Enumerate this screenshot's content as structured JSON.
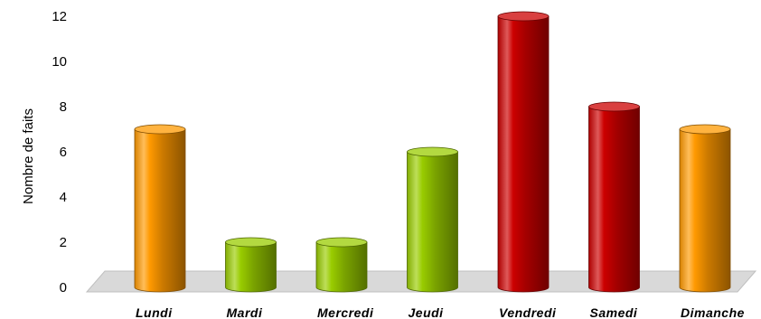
{
  "chart_data": {
    "type": "bar",
    "style": "3d-cylinder",
    "title": "",
    "xlabel": "",
    "ylabel": "Nombre de faits",
    "ylim": [
      0,
      12
    ],
    "yticks": [
      "0",
      "2",
      "4",
      "6",
      "8",
      "10",
      "12"
    ],
    "categories": [
      "Lundi",
      "Mardi",
      "Mercredi",
      "Jeudi",
      "Vendredi",
      "Samedi",
      "Dimanche"
    ],
    "values": [
      7,
      2,
      2,
      6,
      12,
      8,
      7
    ],
    "bar_colors": [
      "#ff9900",
      "#99cc00",
      "#99cc00",
      "#99cc00",
      "#cc0000",
      "#cc0000",
      "#ff9900"
    ],
    "grid": false,
    "legend": "none"
  }
}
